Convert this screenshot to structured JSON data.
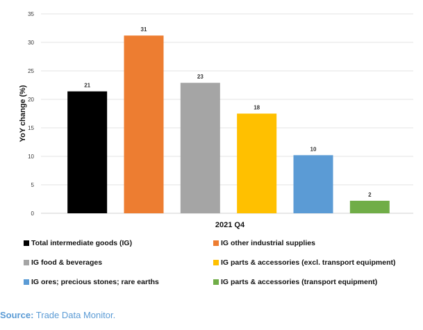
{
  "chart_data": {
    "type": "bar",
    "categories": [
      "2021 Q4"
    ],
    "xlabel": "2021 Q4",
    "ylabel": "YoY  change (%)",
    "ylim": [
      0,
      35
    ],
    "yticks": [
      0,
      5,
      10,
      15,
      20,
      25,
      30,
      35
    ],
    "grid": true,
    "legend_position": "bottom",
    "series": [
      {
        "name": "Total intermediate goods (IG)",
        "value": 21.4,
        "label": "21",
        "color": "#000000"
      },
      {
        "name": "IG other industrial supplies",
        "value": 31.2,
        "label": "31",
        "color": "#ed7d31"
      },
      {
        "name": "IG food & beverages",
        "value": 22.9,
        "label": "23",
        "color": "#a5a5a5"
      },
      {
        "name": "IG parts & accessories (excl. transport equipment)",
        "value": 17.5,
        "label": "18",
        "color": "#ffc000"
      },
      {
        "name": "IG ores; precious stones; rare earths",
        "value": 10.2,
        "label": "10",
        "color": "#5b9bd5"
      },
      {
        "name": "IG parts & accessories (transport equipment)",
        "value": 2.2,
        "label": "2",
        "color": "#70ad47"
      }
    ]
  },
  "legend_order": [
    0,
    1,
    2,
    3,
    4,
    5
  ],
  "source": {
    "label": "Source:",
    "text": " Trade Data Monitor."
  }
}
